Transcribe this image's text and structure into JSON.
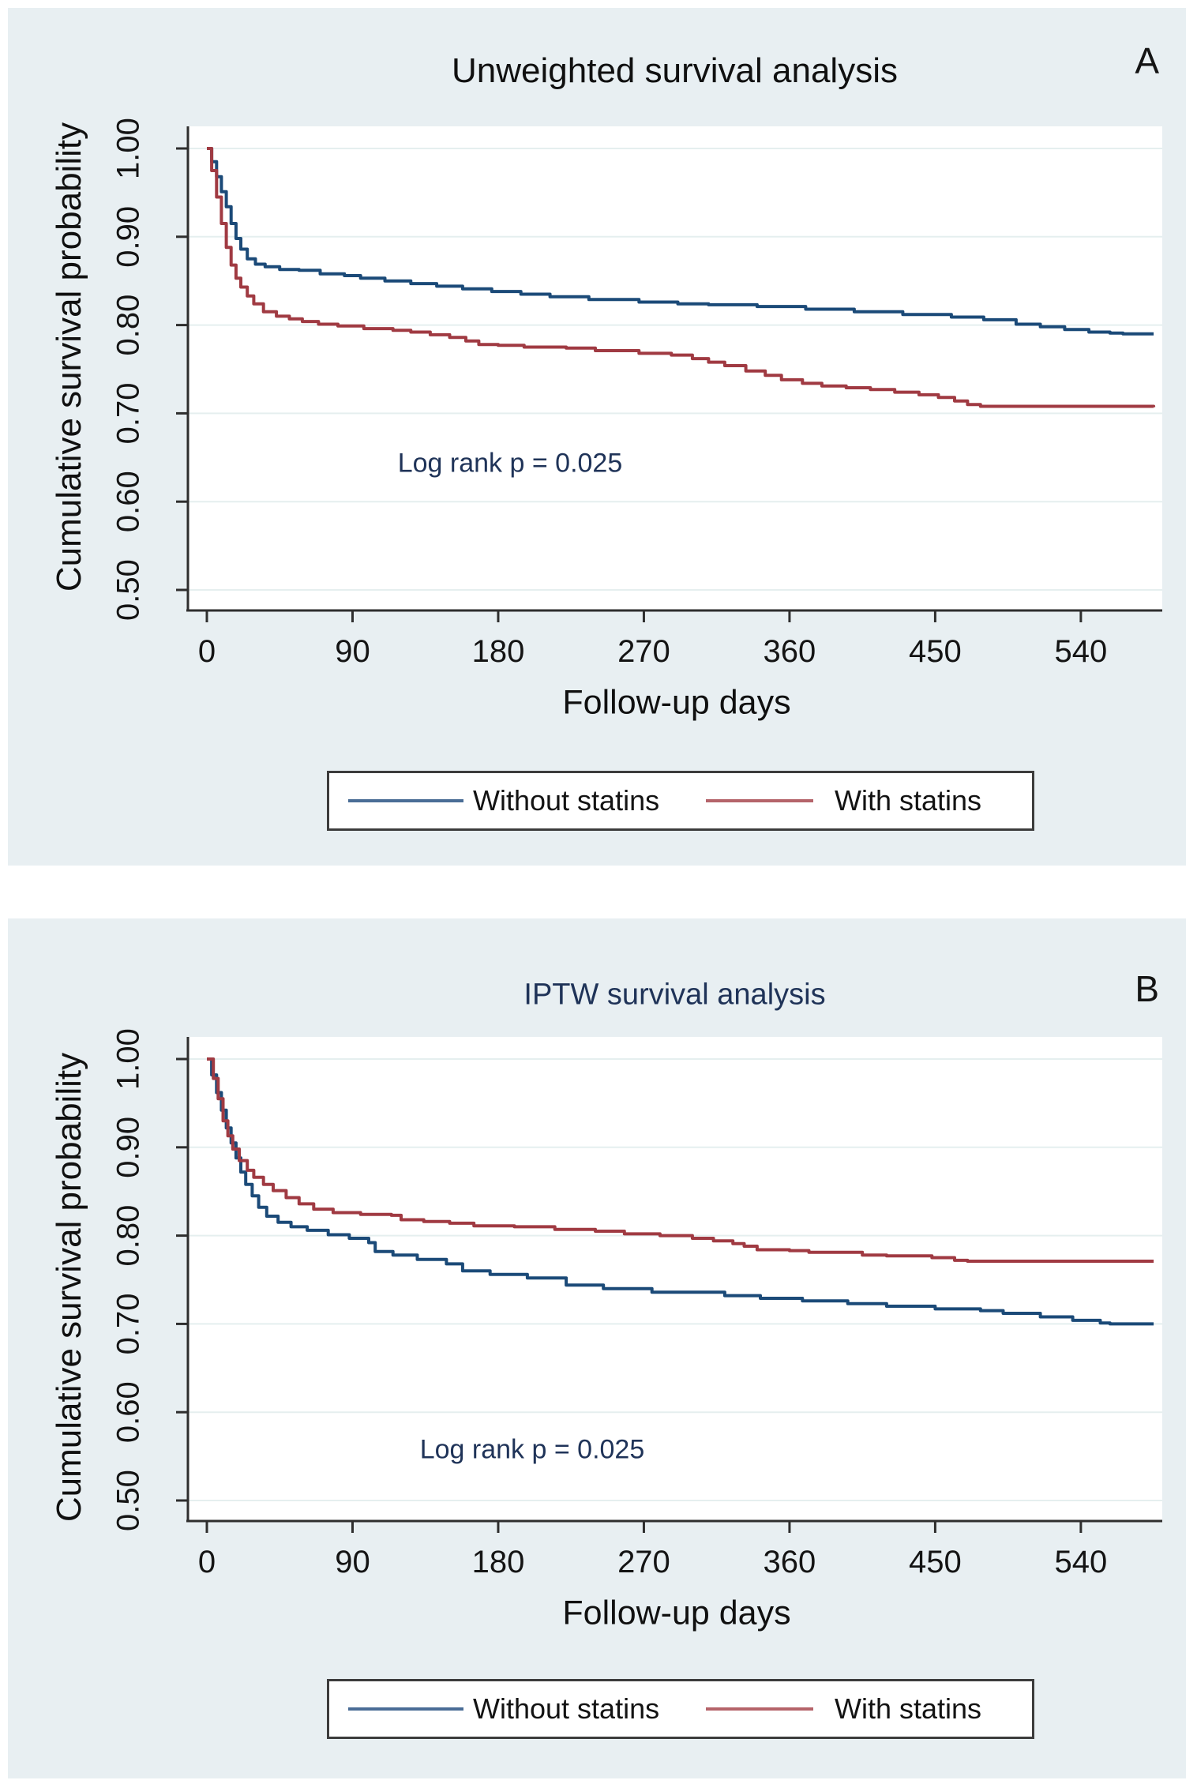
{
  "colors": {
    "panel_background": "#e8eff2",
    "plot_background": "#ffffff",
    "gridline": "#e5efef",
    "axis": "#2e2e2e",
    "navy_text": "#1f3358",
    "curve_blue": "#1b4a78",
    "curve_red": "#a03a42",
    "legend_blue": "#4a6d96",
    "legend_red": "#b5646a"
  },
  "chart_data": [
    {
      "type": "line",
      "subtype": "kaplan-meier-step",
      "panel_label": "A",
      "title": "Unweighted survival analysis",
      "title_color": "#101010",
      "xlabel": "Follow-up days",
      "ylabel": "Cumulative survival probability",
      "annotation": "Log rank p = 0.025",
      "log_rank_p": 0.025,
      "grid": "horizontal",
      "legend_position": "bottom",
      "xlim": [
        0,
        590
      ],
      "ylim": [
        0.475,
        1.02
      ],
      "x_ticks": [
        0,
        90,
        180,
        270,
        360,
        450,
        540
      ],
      "y_ticks": [
        1.0,
        0.9,
        0.8,
        0.7,
        0.6,
        0.5
      ],
      "y_tick_labels": [
        "1.00",
        "0.90",
        "0.80",
        "0.70",
        "0.60",
        "0.50"
      ],
      "series": [
        {
          "name": "Without statins",
          "color": "#1b4a78",
          "legend_color": "#4a6d96",
          "points": [
            [
              0,
              1.0
            ],
            [
              3,
              0.985
            ],
            [
              6,
              0.968
            ],
            [
              9,
              0.951
            ],
            [
              12,
              0.934
            ],
            [
              15,
              0.915
            ],
            [
              18,
              0.898
            ],
            [
              21,
              0.886
            ],
            [
              25,
              0.875
            ],
            [
              30,
              0.869
            ],
            [
              36,
              0.866
            ],
            [
              45,
              0.863
            ],
            [
              57,
              0.862
            ],
            [
              70,
              0.858
            ],
            [
              85,
              0.856
            ],
            [
              95,
              0.853
            ],
            [
              110,
              0.85
            ],
            [
              126,
              0.847
            ],
            [
              142,
              0.844
            ],
            [
              158,
              0.841
            ],
            [
              176,
              0.838
            ],
            [
              194,
              0.835
            ],
            [
              212,
              0.832
            ],
            [
              236,
              0.829
            ],
            [
              267,
              0.826
            ],
            [
              291,
              0.824
            ],
            [
              310,
              0.823
            ],
            [
              340,
              0.821
            ],
            [
              370,
              0.818
            ],
            [
              400,
              0.815
            ],
            [
              430,
              0.812
            ],
            [
              460,
              0.809
            ],
            [
              480,
              0.806
            ],
            [
              500,
              0.801
            ],
            [
              515,
              0.798
            ],
            [
              530,
              0.795
            ],
            [
              545,
              0.792
            ],
            [
              558,
              0.791
            ],
            [
              566,
              0.79
            ],
            [
              585,
              0.79
            ]
          ]
        },
        {
          "name": "With statins",
          "color": "#a03a42",
          "legend_color": "#b5646a",
          "points": [
            [
              0,
              1.0
            ],
            [
              3,
              0.975
            ],
            [
              6,
              0.945
            ],
            [
              9,
              0.915
            ],
            [
              12,
              0.888
            ],
            [
              15,
              0.868
            ],
            [
              18,
              0.853
            ],
            [
              21,
              0.843
            ],
            [
              25,
              0.833
            ],
            [
              29,
              0.824
            ],
            [
              35,
              0.815
            ],
            [
              43,
              0.81
            ],
            [
              51,
              0.807
            ],
            [
              59,
              0.804
            ],
            [
              69,
              0.801
            ],
            [
              81,
              0.799
            ],
            [
              97,
              0.796
            ],
            [
              115,
              0.794
            ],
            [
              126,
              0.792
            ],
            [
              138,
              0.789
            ],
            [
              150,
              0.786
            ],
            [
              160,
              0.782
            ],
            [
              168,
              0.778
            ],
            [
              180,
              0.777
            ],
            [
              196,
              0.775
            ],
            [
              222,
              0.774
            ],
            [
              240,
              0.771
            ],
            [
              267,
              0.768
            ],
            [
              287,
              0.766
            ],
            [
              300,
              0.762
            ],
            [
              310,
              0.758
            ],
            [
              320,
              0.754
            ],
            [
              333,
              0.748
            ],
            [
              345,
              0.743
            ],
            [
              355,
              0.738
            ],
            [
              368,
              0.734
            ],
            [
              380,
              0.731
            ],
            [
              395,
              0.729
            ],
            [
              410,
              0.727
            ],
            [
              425,
              0.724
            ],
            [
              440,
              0.721
            ],
            [
              452,
              0.718
            ],
            [
              462,
              0.714
            ],
            [
              470,
              0.71
            ],
            [
              478,
              0.708
            ],
            [
              585,
              0.707
            ]
          ]
        }
      ]
    },
    {
      "type": "line",
      "subtype": "kaplan-meier-step",
      "panel_label": "B",
      "title": "IPTW survival analysis",
      "title_color": "#1f3358",
      "xlabel": "Follow-up days",
      "ylabel": "Cumulative survival probability",
      "annotation": "Log rank p = 0.025",
      "log_rank_p": 0.025,
      "grid": "horizontal",
      "legend_position": "bottom",
      "xlim": [
        0,
        590
      ],
      "ylim": [
        0.475,
        1.02
      ],
      "x_ticks": [
        0,
        90,
        180,
        270,
        360,
        450,
        540
      ],
      "y_ticks": [
        1.0,
        0.9,
        0.8,
        0.7,
        0.6,
        0.5
      ],
      "y_tick_labels": [
        "1.00",
        "0.90",
        "0.80",
        "0.70",
        "0.60",
        "0.50"
      ],
      "series": [
        {
          "name": "Without statins",
          "color": "#1b4a78",
          "legend_color": "#4a6d96",
          "points": [
            [
              0,
              1.0
            ],
            [
              3,
              0.982
            ],
            [
              6,
              0.962
            ],
            [
              9,
              0.942
            ],
            [
              12,
              0.922
            ],
            [
              15,
              0.905
            ],
            [
              18,
              0.888
            ],
            [
              21,
              0.872
            ],
            [
              24,
              0.858
            ],
            [
              28,
              0.845
            ],
            [
              32,
              0.832
            ],
            [
              37,
              0.822
            ],
            [
              44,
              0.815
            ],
            [
              52,
              0.81
            ],
            [
              62,
              0.806
            ],
            [
              75,
              0.801
            ],
            [
              88,
              0.797
            ],
            [
              100,
              0.792
            ],
            [
              104,
              0.782
            ],
            [
              115,
              0.778
            ],
            [
              130,
              0.773
            ],
            [
              148,
              0.768
            ],
            [
              158,
              0.76
            ],
            [
              175,
              0.756
            ],
            [
              198,
              0.752
            ],
            [
              222,
              0.744
            ],
            [
              245,
              0.74
            ],
            [
              275,
              0.736
            ],
            [
              320,
              0.732
            ],
            [
              342,
              0.729
            ],
            [
              368,
              0.726
            ],
            [
              396,
              0.723
            ],
            [
              420,
              0.72
            ],
            [
              450,
              0.717
            ],
            [
              478,
              0.715
            ],
            [
              492,
              0.712
            ],
            [
              515,
              0.708
            ],
            [
              535,
              0.704
            ],
            [
              552,
              0.701
            ],
            [
              558,
              0.7
            ],
            [
              585,
              0.7
            ]
          ]
        },
        {
          "name": "With statins",
          "color": "#a03a42",
          "legend_color": "#b5646a",
          "points": [
            [
              0,
              1.0
            ],
            [
              4,
              0.978
            ],
            [
              7,
              0.955
            ],
            [
              10,
              0.93
            ],
            [
              13,
              0.913
            ],
            [
              16,
              0.898
            ],
            [
              20,
              0.885
            ],
            [
              25,
              0.874
            ],
            [
              29,
              0.866
            ],
            [
              35,
              0.858
            ],
            [
              41,
              0.851
            ],
            [
              49,
              0.843
            ],
            [
              57,
              0.836
            ],
            [
              66,
              0.83
            ],
            [
              78,
              0.826
            ],
            [
              95,
              0.824
            ],
            [
              114,
              0.823
            ],
            [
              120,
              0.818
            ],
            [
              134,
              0.816
            ],
            [
              150,
              0.814
            ],
            [
              165,
              0.811
            ],
            [
              190,
              0.81
            ],
            [
              215,
              0.807
            ],
            [
              240,
              0.805
            ],
            [
              258,
              0.802
            ],
            [
              280,
              0.8
            ],
            [
              300,
              0.797
            ],
            [
              313,
              0.794
            ],
            [
              325,
              0.791
            ],
            [
              332,
              0.788
            ],
            [
              340,
              0.784
            ],
            [
              360,
              0.783
            ],
            [
              372,
              0.781
            ],
            [
              405,
              0.778
            ],
            [
              420,
              0.777
            ],
            [
              448,
              0.775
            ],
            [
              462,
              0.772
            ],
            [
              470,
              0.771
            ],
            [
              585,
              0.771
            ]
          ]
        }
      ]
    }
  ]
}
